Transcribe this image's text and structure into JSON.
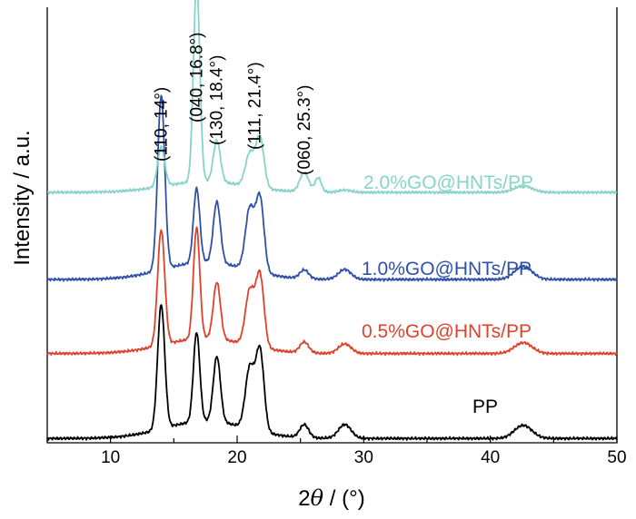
{
  "chart_data": {
    "type": "line",
    "xlabel": "2θ / (°)",
    "ylabel": "Intensity / a.u.",
    "xlim": [
      5,
      50
    ],
    "ylim": [
      0,
      100
    ],
    "x_ticks": [
      10,
      20,
      30,
      40,
      50
    ],
    "y_ticks_shown": false,
    "grid": false,
    "legend": "inline labels beside curves",
    "peak_annotations": [
      {
        "text": "(110, 14°)",
        "x": 14
      },
      {
        "text": "(040, 16.8°)",
        "x": 16.8
      },
      {
        "text": "(130, 18.4°)",
        "x": 18.4
      },
      {
        "text": "(111, 21.4°)",
        "x": 21.4
      },
      {
        "text": "(060, 25.3°)",
        "x": 25.3
      }
    ],
    "peaks_shape": [
      {
        "center": 14.0,
        "width": 0.28
      },
      {
        "center": 16.8,
        "width": 0.25
      },
      {
        "center": 18.4,
        "width": 0.28
      },
      {
        "center": 21.0,
        "width": 0.35
      },
      {
        "center": 21.8,
        "width": 0.32
      },
      {
        "center": 25.3,
        "width": 0.35
      },
      {
        "center": 26.4,
        "width": 0.25
      },
      {
        "center": 28.5,
        "width": 0.5
      },
      {
        "center": 42.6,
        "width": 0.7
      }
    ],
    "series": [
      {
        "name": "PP",
        "color": "#000000",
        "baseline": 1.0,
        "amorphous": 4.0,
        "peak_heights": [
          28.5,
          20.5,
          15.0,
          14.0,
          18.5,
          3.0,
          0.0,
          3.2,
          3.0
        ]
      },
      {
        "name": "0.5%GO@HNTs/PP",
        "color": "#e0412a",
        "baseline": 20.5,
        "amorphous": 3.5,
        "peak_heights": [
          26.5,
          25.5,
          13.0,
          12.5,
          16.5,
          2.5,
          0.0,
          2.2,
          2.5
        ]
      },
      {
        "name": "1.0%GO@HNTs/PP",
        "color": "#2e50a8",
        "baseline": 37.5,
        "amorphous": 4.0,
        "peak_heights": [
          40.0,
          17.0,
          14.0,
          14.0,
          17.0,
          2.0,
          0.0,
          2.3,
          3.0
        ]
      },
      {
        "name": "2.0%GO@HNTs/PP",
        "color": "#86d4c8",
        "baseline": 57.5,
        "amorphous": 2.5,
        "peak_heights": [
          9.0,
          45.5,
          9.5,
          7.5,
          11.5,
          4.5,
          3.3,
          0.5,
          1.5
        ]
      }
    ]
  }
}
